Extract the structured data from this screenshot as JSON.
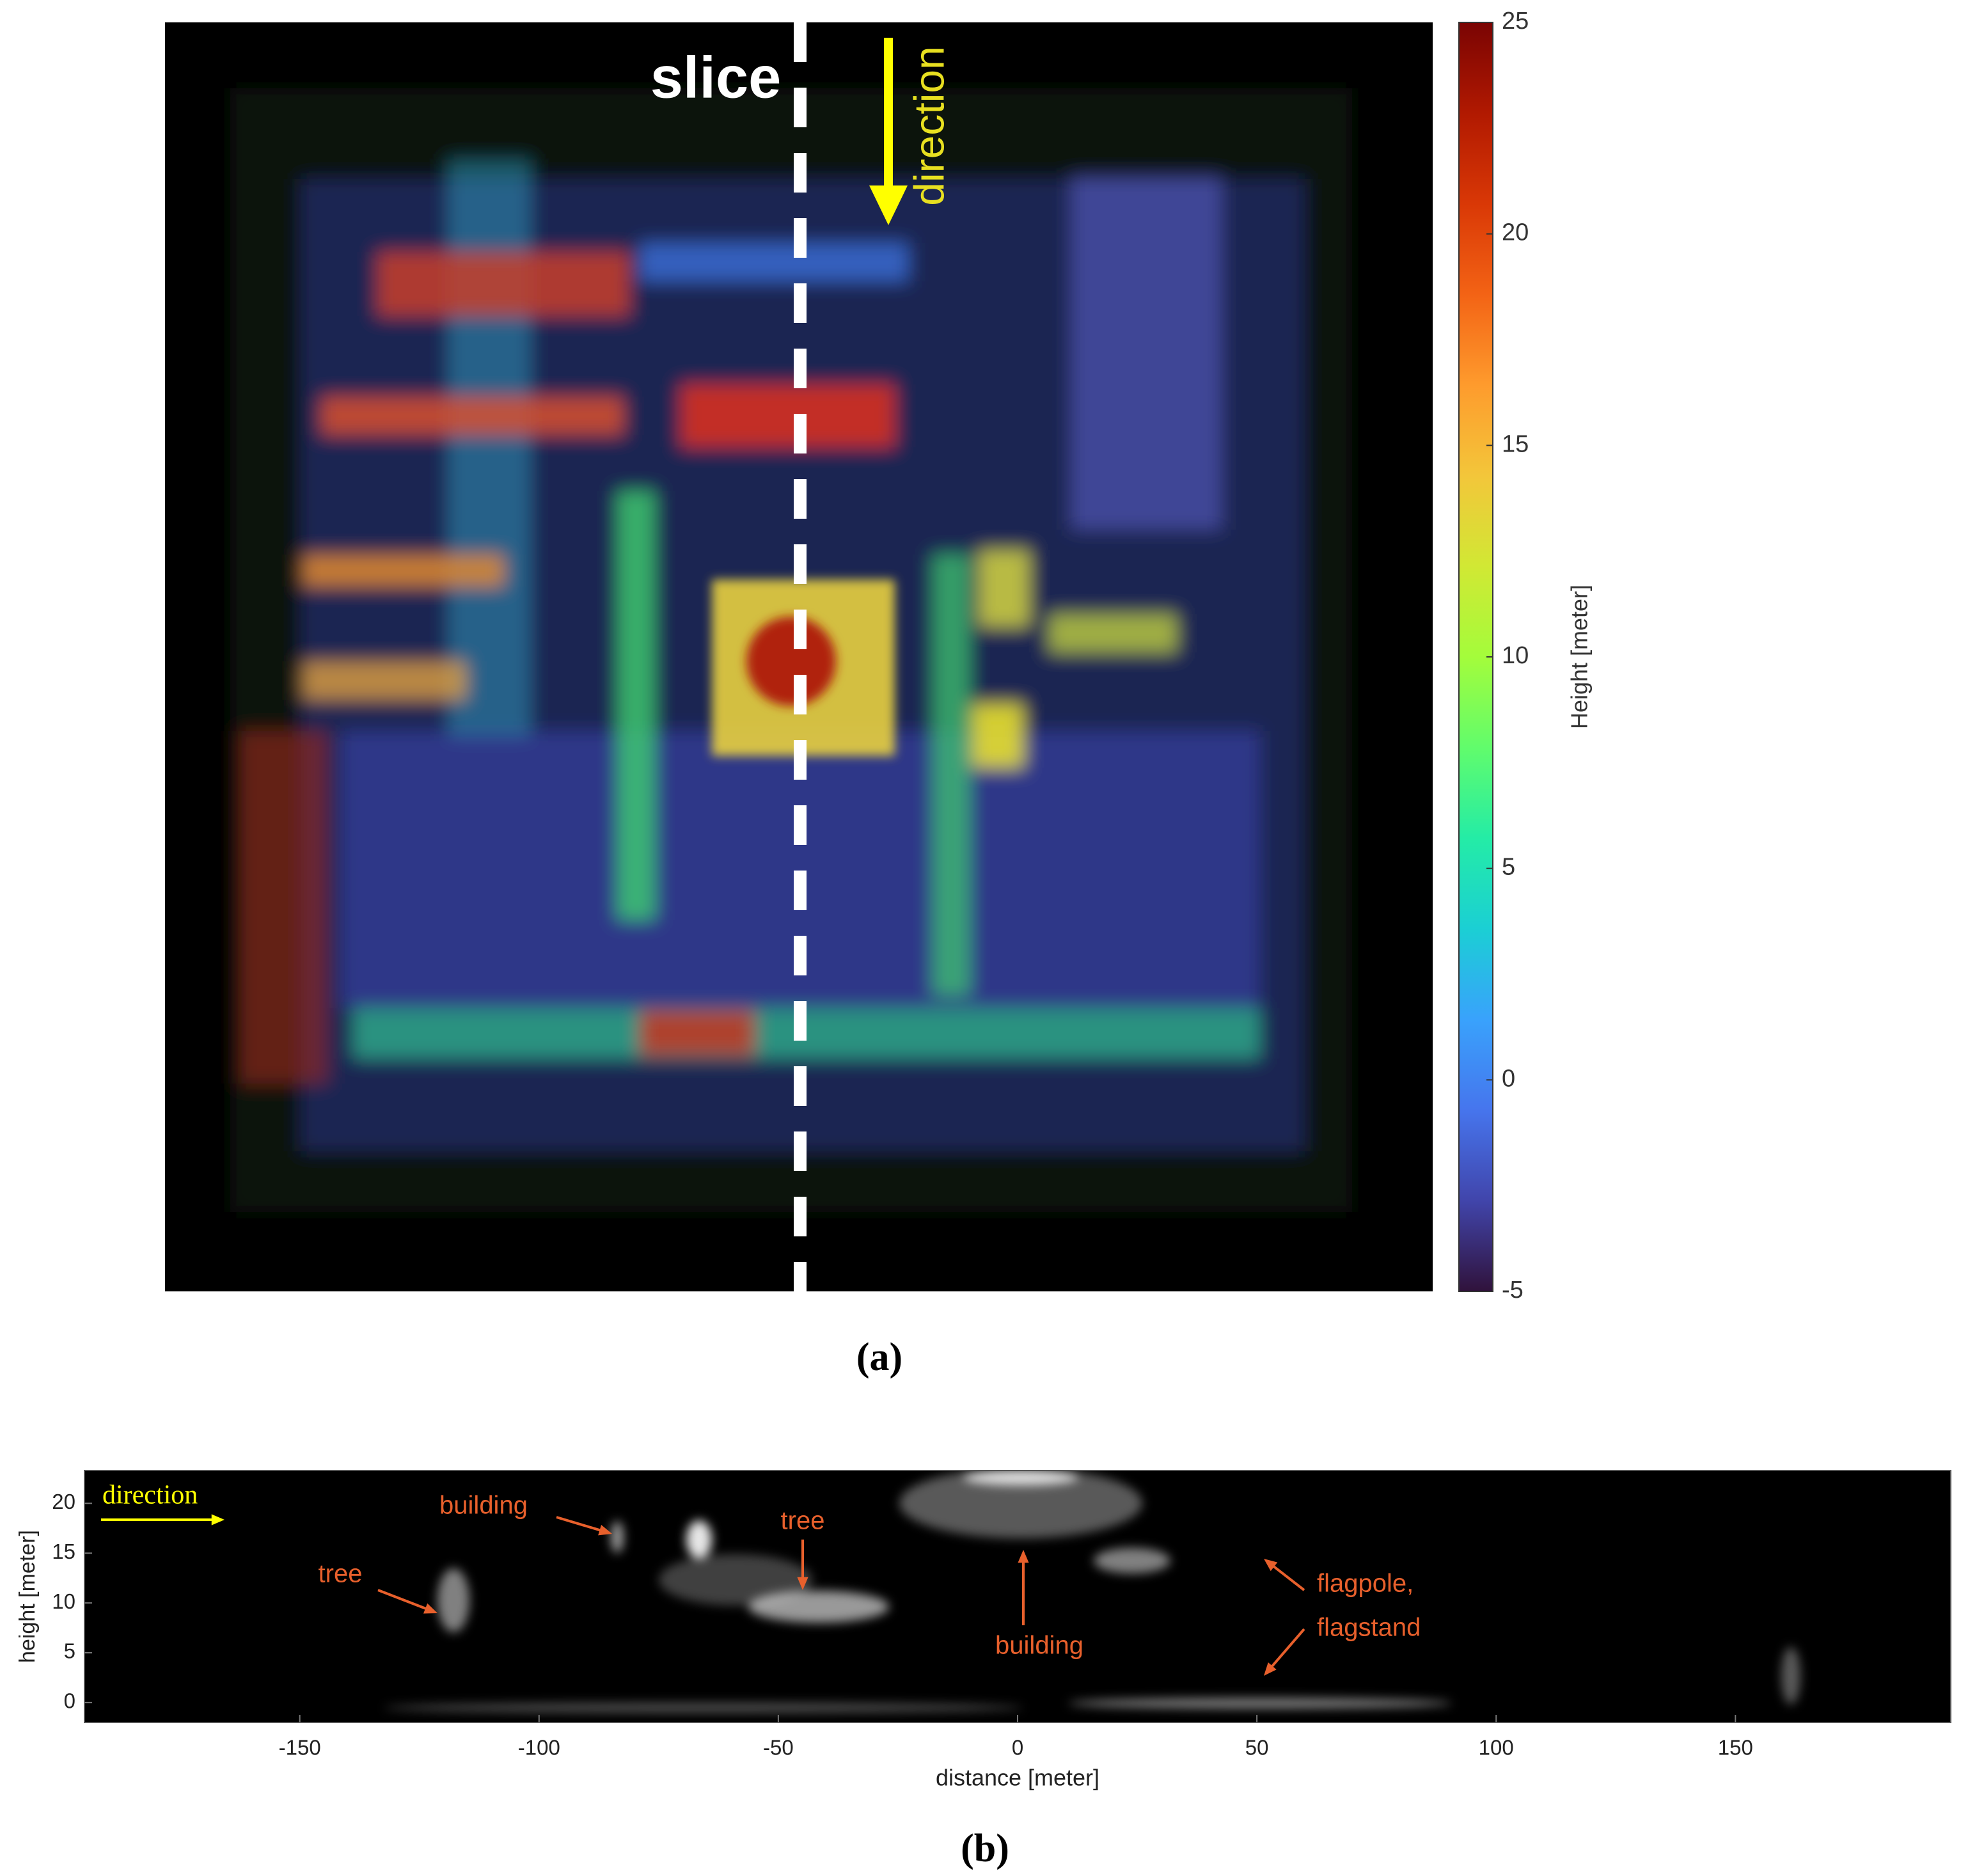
{
  "chart_data": [
    {
      "type": "heatmap",
      "caption": "(a)",
      "annotations": [
        "slice",
        "direction"
      ],
      "colorbar": {
        "label": "Height [meter]",
        "lim": [
          -5,
          25
        ],
        "ticks": [
          -5,
          0,
          5,
          10,
          15,
          20,
          25
        ],
        "colormap": [
          "#30123b",
          "#4145ab",
          "#4675ed",
          "#39a2fc",
          "#1bcfd4",
          "#24eca6",
          "#61fc6c",
          "#a4fc3b",
          "#d1e834",
          "#f3c63a",
          "#fe9b2d",
          "#f36315",
          "#d93806",
          "#b11901",
          "#7a0403"
        ]
      }
    },
    {
      "type": "heatmap",
      "caption": "(b)",
      "xlabel": "distance [meter]",
      "ylabel": "height [meter]",
      "xlim": [
        -195,
        195
      ],
      "ylim": [
        -2,
        23.3
      ],
      "xticks": [
        -150,
        -100,
        -50,
        0,
        50,
        100,
        150
      ],
      "yticks": [
        0,
        5,
        10,
        15,
        20
      ],
      "annotations": [
        "direction",
        "building",
        "tree",
        "tree",
        "building",
        "flagpole,",
        "flagstand"
      ]
    }
  ]
}
